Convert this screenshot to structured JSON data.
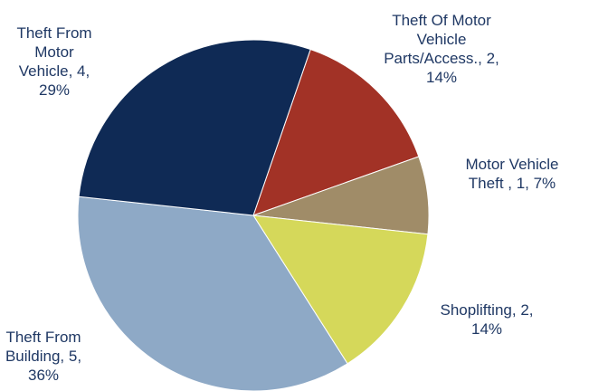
{
  "chart_data": {
    "type": "pie",
    "title": "",
    "slices": [
      {
        "category": "Theft Of Motor Vehicle Parts/Access.",
        "value": 2,
        "percent": "14%",
        "color": "#a23226",
        "label_lines": [
          "Theft Of Motor",
          "Vehicle",
          "Parts/Access., 2,",
          "14%"
        ]
      },
      {
        "category": "Motor Vehicle Theft",
        "value": 1,
        "percent": "7%",
        "color": "#a08c68",
        "label_lines": [
          "Motor Vehicle",
          "Theft , 1, 7%"
        ]
      },
      {
        "category": "Shoplifting",
        "value": 2,
        "percent": "14%",
        "color": "#d5d85a",
        "label_lines": [
          "Shoplifting, 2,",
          "14%"
        ]
      },
      {
        "category": "Theft From Building",
        "value": 5,
        "percent": "36%",
        "color": "#8ea9c6",
        "label_lines": [
          "Theft From",
          "Building, 5,",
          "36%"
        ]
      },
      {
        "category": "Theft From Motor Vehicle",
        "value": 4,
        "percent": "29%",
        "color": "#0f2a55",
        "label_lines": [
          "Theft From",
          "Motor",
          "Vehicle, 4,",
          "29%"
        ]
      }
    ],
    "start_angle_deg": 0,
    "direction": "clockwise",
    "legend": "none"
  }
}
